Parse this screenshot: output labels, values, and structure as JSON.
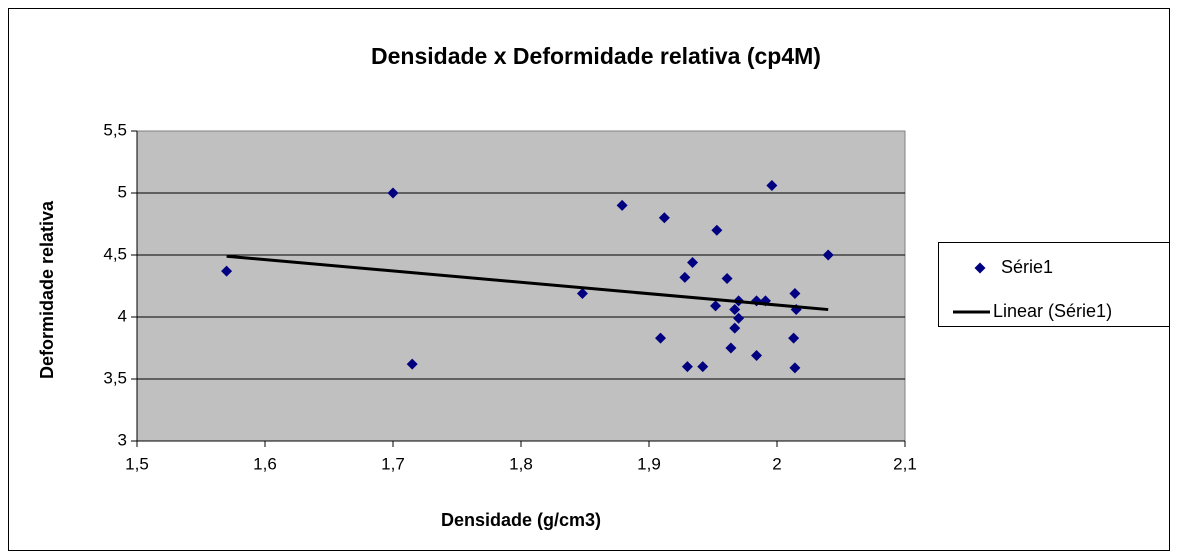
{
  "chart_data": {
    "type": "scatter",
    "title": "Densidade x Deformidade relativa (cp4M)",
    "xlabel": "Densidade (g/cm3)",
    "ylabel": "Deformidade relativa",
    "xlim": [
      1.5,
      2.1
    ],
    "xticks": [
      {
        "value": 1.5,
        "label": "1,5"
      },
      {
        "value": 1.6,
        "label": "1,6"
      },
      {
        "value": 1.7,
        "label": "1,7"
      },
      {
        "value": 1.8,
        "label": "1,8"
      },
      {
        "value": 1.9,
        "label": "1,9"
      },
      2,
      {
        "value": 2.1,
        "label": "2,1"
      }
    ],
    "ylim": [
      3,
      5.5
    ],
    "yticks": [
      3,
      {
        "value": 3.5,
        "label": "3,5"
      },
      4,
      {
        "value": 4.5,
        "label": "4,5"
      },
      5,
      {
        "value": 5.5,
        "label": "5,5"
      }
    ],
    "grid": true,
    "legend": "right",
    "series": [
      {
        "name": "Série1",
        "color": "#000080",
        "marker": "diamond",
        "x": [
          1.57,
          1.7,
          1.715,
          1.848,
          1.879,
          1.912,
          1.909,
          1.928,
          1.934,
          1.93,
          1.942,
          1.953,
          1.952,
          1.961,
          1.967,
          1.97,
          1.967,
          1.97,
          1.964,
          1.984,
          1.991,
          1.996,
          1.984,
          2.014,
          2.015,
          2.013,
          2.014,
          2.04
        ],
        "values": [
          4.37,
          5.0,
          3.62,
          4.19,
          4.9,
          4.8,
          3.83,
          4.32,
          4.44,
          3.6,
          3.6,
          4.7,
          4.09,
          4.31,
          4.06,
          3.99,
          3.91,
          4.13,
          3.75,
          4.13,
          4.13,
          5.06,
          3.69,
          4.19,
          4.06,
          3.83,
          3.59,
          4.5
        ]
      },
      {
        "name": "Linear (Série1)",
        "color": "#000000",
        "marker": "line",
        "x": [
          1.57,
          2.04
        ],
        "values": [
          4.49,
          4.06
        ]
      }
    ]
  }
}
